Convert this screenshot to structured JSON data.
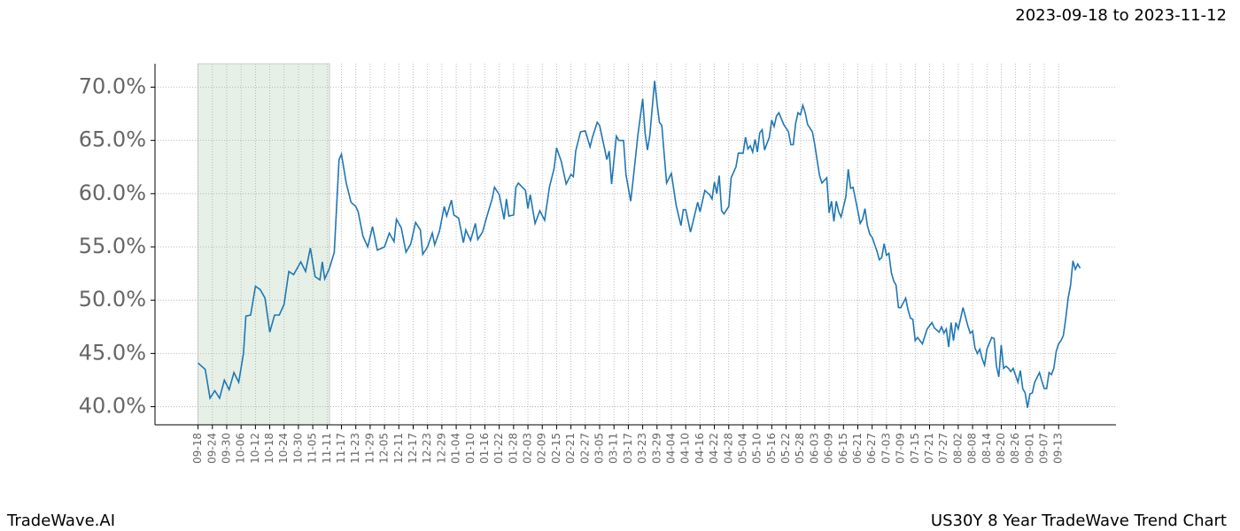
{
  "chart_data": {
    "type": "line",
    "title": "2023-09-18 to 2023-11-12",
    "footer_left": "TradeWave.AI",
    "footer_right": "US30Y 8 Year TradeWave Trend Chart",
    "color": "#1f77b4",
    "highlight": {
      "start": 0,
      "end": 55,
      "color": "#e6f0e6"
    },
    "grid": true,
    "xlim": [
      -18,
      384
    ],
    "ylim": [
      38.3,
      72.2
    ],
    "yticks": [
      {
        "value": 40,
        "label": "40.0%"
      },
      {
        "value": 45,
        "label": "45.0%"
      },
      {
        "value": 50,
        "label": "50.0%"
      },
      {
        "value": 55,
        "label": "55.0%"
      },
      {
        "value": 60,
        "label": "60.0%"
      },
      {
        "value": 65,
        "label": "65.0%"
      },
      {
        "value": 70,
        "label": "70.0%"
      }
    ],
    "xticks": [
      {
        "value": 0,
        "label": "09-18"
      },
      {
        "value": 6,
        "label": "09-24"
      },
      {
        "value": 12,
        "label": "09-30"
      },
      {
        "value": 18,
        "label": "10-06"
      },
      {
        "value": 24,
        "label": "10-12"
      },
      {
        "value": 30,
        "label": "10-18"
      },
      {
        "value": 36,
        "label": "10-24"
      },
      {
        "value": 42,
        "label": "10-30"
      },
      {
        "value": 48,
        "label": "11-05"
      },
      {
        "value": 54,
        "label": "11-11"
      },
      {
        "value": 60,
        "label": "11-17"
      },
      {
        "value": 66,
        "label": "11-23"
      },
      {
        "value": 72,
        "label": "11-29"
      },
      {
        "value": 78,
        "label": "12-05"
      },
      {
        "value": 84,
        "label": "12-11"
      },
      {
        "value": 90,
        "label": "12-17"
      },
      {
        "value": 96,
        "label": "12-23"
      },
      {
        "value": 102,
        "label": "12-29"
      },
      {
        "value": 108,
        "label": "01-04"
      },
      {
        "value": 114,
        "label": "01-10"
      },
      {
        "value": 120,
        "label": "01-16"
      },
      {
        "value": 126,
        "label": "01-22"
      },
      {
        "value": 132,
        "label": "01-28"
      },
      {
        "value": 138,
        "label": "02-03"
      },
      {
        "value": 144,
        "label": "02-09"
      },
      {
        "value": 150,
        "label": "02-15"
      },
      {
        "value": 156,
        "label": "02-21"
      },
      {
        "value": 162,
        "label": "02-27"
      },
      {
        "value": 168,
        "label": "03-05"
      },
      {
        "value": 174,
        "label": "03-11"
      },
      {
        "value": 180,
        "label": "03-17"
      },
      {
        "value": 186,
        "label": "03-23"
      },
      {
        "value": 192,
        "label": "03-29"
      },
      {
        "value": 198,
        "label": "04-04"
      },
      {
        "value": 204,
        "label": "04-10"
      },
      {
        "value": 210,
        "label": "04-16"
      },
      {
        "value": 216,
        "label": "04-22"
      },
      {
        "value": 222,
        "label": "04-28"
      },
      {
        "value": 228,
        "label": "05-04"
      },
      {
        "value": 234,
        "label": "05-10"
      },
      {
        "value": 240,
        "label": "05-16"
      },
      {
        "value": 246,
        "label": "05-22"
      },
      {
        "value": 252,
        "label": "05-28"
      },
      {
        "value": 258,
        "label": "06-03"
      },
      {
        "value": 264,
        "label": "06-09"
      },
      {
        "value": 270,
        "label": "06-15"
      },
      {
        "value": 276,
        "label": "06-21"
      },
      {
        "value": 282,
        "label": "06-27"
      },
      {
        "value": 288,
        "label": "07-03"
      },
      {
        "value": 294,
        "label": "07-09"
      },
      {
        "value": 300,
        "label": "07-15"
      },
      {
        "value": 306,
        "label": "07-21"
      },
      {
        "value": 312,
        "label": "07-27"
      },
      {
        "value": 318,
        "label": "08-02"
      },
      {
        "value": 324,
        "label": "08-08"
      },
      {
        "value": 330,
        "label": "08-14"
      },
      {
        "value": 336,
        "label": "08-20"
      },
      {
        "value": 342,
        "label": "08-26"
      },
      {
        "value": 348,
        "label": "09-01"
      },
      {
        "value": 354,
        "label": "09-07"
      },
      {
        "value": 360,
        "label": "09-13"
      }
    ],
    "x": [
      0,
      3,
      5,
      7,
      9,
      11,
      13,
      15,
      17,
      19,
      20,
      22,
      24,
      26,
      28,
      30,
      32,
      34,
      36,
      38,
      40,
      43,
      45,
      47,
      49,
      51,
      52,
      53,
      55,
      57,
      59,
      60,
      62,
      64,
      66,
      67,
      69,
      71,
      73,
      75,
      78,
      80,
      82,
      83,
      85,
      87,
      89,
      91,
      93,
      94,
      96,
      98,
      99,
      101,
      103,
      104,
      106,
      107,
      109,
      111,
      112,
      114,
      116,
      117,
      119,
      121,
      123,
      124,
      126,
      128,
      129,
      130,
      132,
      133,
      134,
      137,
      138,
      139,
      141,
      143,
      145,
      147,
      149,
      150,
      152,
      154,
      156,
      157,
      158,
      160,
      162,
      164,
      165,
      167,
      168,
      170,
      171,
      172,
      173,
      175,
      176,
      178,
      179,
      181,
      182,
      184,
      186,
      187,
      188,
      189,
      191,
      192,
      193,
      194,
      196,
      198,
      200,
      202,
      203,
      204,
      206,
      207,
      209,
      210,
      212,
      214,
      215,
      216,
      217,
      218,
      219,
      220,
      222,
      223,
      225,
      226,
      228,
      229,
      230,
      231,
      232,
      233,
      234,
      235,
      236,
      237,
      239,
      240,
      241,
      242,
      243,
      245,
      247,
      248,
      249,
      250,
      251,
      252,
      253,
      254,
      255,
      257,
      258,
      260,
      261,
      263,
      264,
      265,
      266,
      267,
      268,
      269,
      271,
      272,
      273,
      274,
      276,
      277,
      278,
      279,
      280,
      281,
      282,
      284,
      285,
      286,
      287,
      288,
      289,
      290,
      291,
      292,
      293,
      294,
      296,
      297,
      298,
      299,
      300,
      301,
      303,
      305,
      307,
      308,
      310,
      311,
      312,
      313,
      314,
      315,
      316,
      317,
      318,
      320,
      322,
      323,
      324,
      325,
      326,
      327,
      328,
      329,
      330,
      332,
      333,
      334,
      335,
      336,
      337,
      338,
      339,
      340,
      341,
      343,
      344,
      345,
      346,
      347,
      348,
      349,
      350,
      352,
      353,
      354,
      355,
      356,
      357,
      358,
      359,
      360,
      361,
      362,
      363,
      364,
      365,
      366,
      367,
      368,
      369
    ],
    "values": [
      44.1,
      43.5,
      40.8,
      41.5,
      40.8,
      42.5,
      41.6,
      43.2,
      42.3,
      45,
      48.5,
      48.6,
      51.3,
      51.0,
      50.2,
      47.0,
      48.6,
      48.6,
      49.6,
      52.7,
      52.4,
      53.6,
      52.7,
      54.9,
      52.2,
      51.9,
      53.6,
      52.0,
      53.0,
      54.5,
      63.2,
      63.7,
      61,
      59.2,
      58.8,
      58.3,
      56,
      55,
      56.9,
      54.7,
      55,
      56.3,
      55.5,
      57.6,
      56.8,
      54.5,
      55.3,
      57.3,
      56.6,
      54.3,
      55,
      56.3,
      55.2,
      56.5,
      58.8,
      57.9,
      59.4,
      58,
      57.7,
      55.4,
      56.6,
      55.6,
      57.2,
      55.7,
      56.4,
      58.0,
      59.5,
      60.6,
      59.9,
      57.6,
      59.5,
      57.9,
      58,
      60.6,
      61,
      60.3,
      58.6,
      59.9,
      57.2,
      58.4,
      57.5,
      60.6,
      62.4,
      64.3,
      63,
      60.9,
      61.8,
      61.6,
      64,
      65.8,
      65.9,
      64.4,
      65.3,
      66.7,
      66.4,
      64.3,
      63.2,
      64,
      60.9,
      65.4,
      65,
      65,
      61.8,
      59.3,
      61.3,
      65.5,
      68.9,
      65.7,
      64.1,
      65.5,
      70.6,
      68.5,
      66.7,
      66.4,
      61,
      61.9,
      58.9,
      57,
      58.5,
      58.5,
      56.4,
      57.3,
      59.2,
      58.3,
      60.3,
      59.9,
      59.5,
      61.1,
      60,
      61.7,
      58.4,
      58.1,
      58.8,
      61.5,
      62.5,
      63.8,
      63.8,
      65.3,
      64.2,
      64.5,
      63.9,
      65.1,
      63.9,
      65.7,
      66,
      64.1,
      65.3,
      66.9,
      66.3,
      67.3,
      67.6,
      66.5,
      65.8,
      64.6,
      64.6,
      66.6,
      67.6,
      67.4,
      68.3,
      67.6,
      66.5,
      65.8,
      64.6,
      61.7,
      61,
      61.5,
      58.2,
      59.3,
      57.4,
      59.3,
      58.3,
      57.8,
      59.7,
      62.3,
      60.5,
      60.6,
      58.4,
      57.2,
      57.6,
      58.6,
      57,
      56.2,
      55.9,
      54.6,
      53.8,
      54,
      55.3,
      54.2,
      54.4,
      52.6,
      51.8,
      51.4,
      49.3,
      49.3,
      50.2,
      49.1,
      48.3,
      48.2,
      46.2,
      46.5,
      45.9,
      47.3,
      47.9,
      47.4,
      47.0,
      47.5,
      46.9,
      47.3,
      45.6,
      47.9,
      46.2,
      47.9,
      47.3,
      49.3,
      47.6,
      46.9,
      47.1,
      45.5,
      45.0,
      45.4,
      44.5,
      43.9,
      45.4,
      46.5,
      46.4,
      43.8,
      42.8,
      45.8,
      43.6,
      43.8,
      43.6,
      43.3,
      43.6,
      42.3,
      43.4,
      41.7,
      41.3,
      39.9,
      41.2,
      41.3,
      42.3,
      43.2,
      42.4,
      41.7,
      41.7,
      43.2,
      43.0,
      43.6,
      45.2,
      45.9,
      46.2,
      46.7,
      48.3,
      50.2,
      51.4,
      53.7,
      52.9,
      53.4,
      53.0
    ]
  }
}
